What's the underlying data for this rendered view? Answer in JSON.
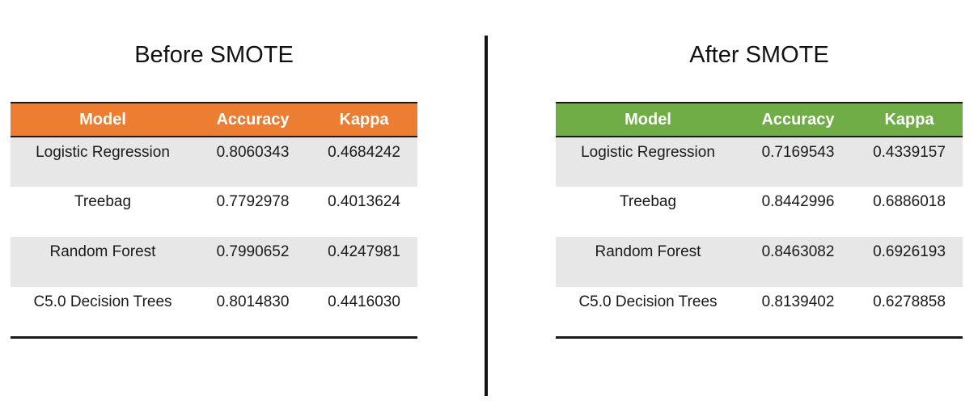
{
  "before": {
    "title": "Before SMOTE",
    "headers": [
      "Model",
      "Accuracy",
      "Kappa"
    ],
    "header_color": "#ed7d31",
    "rows": [
      {
        "model": "Logistic Regression",
        "accuracy": "0.8060343",
        "kappa": "0.4684242"
      },
      {
        "model": "Treebag",
        "accuracy": "0.7792978",
        "kappa": "0.4013624"
      },
      {
        "model": "Random Forest",
        "accuracy": "0.7990652",
        "kappa": "0.4247981"
      },
      {
        "model": "C5.0 Decision Trees",
        "accuracy": "0.8014830",
        "kappa": "0.4416030"
      }
    ]
  },
  "after": {
    "title": "After SMOTE",
    "headers": [
      "Model",
      "Accuracy",
      "Kappa"
    ],
    "header_color": "#70ad47",
    "rows": [
      {
        "model": "Logistic Regression",
        "accuracy": "0.7169543",
        "kappa": "0.4339157"
      },
      {
        "model": "Treebag",
        "accuracy": "0.8442996",
        "kappa": "0.6886018"
      },
      {
        "model": "Random Forest",
        "accuracy": "0.8463082",
        "kappa": "0.6926193"
      },
      {
        "model": "C5.0 Decision Trees",
        "accuracy": "0.8139402",
        "kappa": "0.6278858"
      }
    ]
  }
}
